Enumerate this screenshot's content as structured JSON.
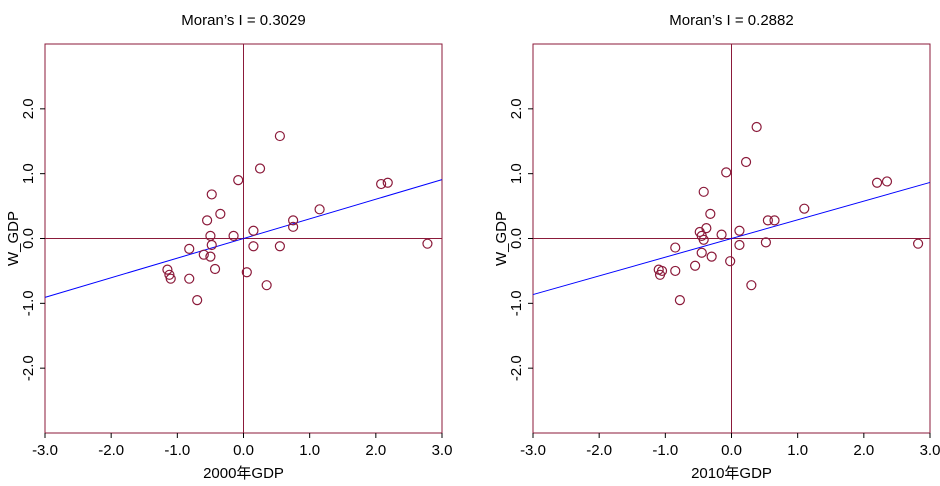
{
  "chart_data": [
    {
      "type": "scatter",
      "title": "Moran’s I = 0.3029",
      "xlabel": "2000年GDP",
      "ylabel": "W_GDP",
      "xlim": [
        -3.0,
        3.0
      ],
      "ylim": [
        -3.0,
        3.0
      ],
      "xticks": [
        "-3.0",
        "-2.0",
        "-1.0",
        "0.0",
        "1.0",
        "2.0",
        "3.0"
      ],
      "yticks": [
        "-2.0",
        "-1.0",
        "0.0",
        "1.0",
        "2.0"
      ],
      "grid": false,
      "point_color": "#8B1A3A",
      "axis_color": "#8B1A3A",
      "fit_line": {
        "slope": 0.3029,
        "color": "#0000FF"
      },
      "points": [
        {
          "x": -1.15,
          "y": -0.48
        },
        {
          "x": -1.12,
          "y": -0.56
        },
        {
          "x": -1.1,
          "y": -0.62
        },
        {
          "x": -0.82,
          "y": -0.62
        },
        {
          "x": -0.82,
          "y": -0.16
        },
        {
          "x": -0.7,
          "y": -0.95
        },
        {
          "x": -0.6,
          "y": -0.25
        },
        {
          "x": -0.55,
          "y": 0.28
        },
        {
          "x": -0.5,
          "y": -0.28
        },
        {
          "x": -0.5,
          "y": 0.04
        },
        {
          "x": -0.48,
          "y": -0.1
        },
        {
          "x": -0.48,
          "y": 0.68
        },
        {
          "x": -0.43,
          "y": -0.47
        },
        {
          "x": -0.35,
          "y": 0.38
        },
        {
          "x": -0.15,
          "y": 0.04
        },
        {
          "x": -0.08,
          "y": 0.9
        },
        {
          "x": 0.05,
          "y": -0.52
        },
        {
          "x": 0.15,
          "y": 0.12
        },
        {
          "x": 0.15,
          "y": -0.12
        },
        {
          "x": 0.25,
          "y": 1.08
        },
        {
          "x": 0.35,
          "y": -0.72
        },
        {
          "x": 0.55,
          "y": -0.12
        },
        {
          "x": 0.55,
          "y": 1.58
        },
        {
          "x": 0.75,
          "y": 0.28
        },
        {
          "x": 0.75,
          "y": 0.18
        },
        {
          "x": 1.15,
          "y": 0.45
        },
        {
          "x": 2.08,
          "y": 0.84
        },
        {
          "x": 2.18,
          "y": 0.86
        },
        {
          "x": 2.78,
          "y": -0.08
        }
      ]
    },
    {
      "type": "scatter",
      "title": "Moran’s I = 0.2882",
      "xlabel": "2010年GDP",
      "ylabel": "W_GDP",
      "xlim": [
        -3.0,
        3.0
      ],
      "ylim": [
        -3.0,
        3.0
      ],
      "xticks": [
        "-3.0",
        "-2.0",
        "-1.0",
        "0.0",
        "1.0",
        "2.0",
        "3.0"
      ],
      "yticks": [
        "-2.0",
        "-1.0",
        "0.0",
        "1.0",
        "2.0"
      ],
      "grid": false,
      "point_color": "#8B1A3A",
      "axis_color": "#8B1A3A",
      "fit_line": {
        "slope": 0.2882,
        "color": "#0000FF"
      },
      "points": [
        {
          "x": -1.1,
          "y": -0.48
        },
        {
          "x": -1.08,
          "y": -0.56
        },
        {
          "x": -1.05,
          "y": -0.5
        },
        {
          "x": -0.85,
          "y": -0.5
        },
        {
          "x": -0.85,
          "y": -0.14
        },
        {
          "x": -0.78,
          "y": -0.95
        },
        {
          "x": -0.55,
          "y": -0.42
        },
        {
          "x": -0.48,
          "y": 0.1
        },
        {
          "x": -0.45,
          "y": -0.22
        },
        {
          "x": -0.45,
          "y": 0.04
        },
        {
          "x": -0.42,
          "y": -0.02
        },
        {
          "x": -0.42,
          "y": 0.72
        },
        {
          "x": -0.38,
          "y": 0.16
        },
        {
          "x": -0.32,
          "y": 0.38
        },
        {
          "x": -0.3,
          "y": -0.28
        },
        {
          "x": -0.15,
          "y": 0.06
        },
        {
          "x": -0.08,
          "y": 1.02
        },
        {
          "x": -0.02,
          "y": -0.35
        },
        {
          "x": 0.12,
          "y": 0.12
        },
        {
          "x": 0.12,
          "y": -0.1
        },
        {
          "x": 0.22,
          "y": 1.18
        },
        {
          "x": 0.3,
          "y": -0.72
        },
        {
          "x": 0.38,
          "y": 1.72
        },
        {
          "x": 0.52,
          "y": -0.06
        },
        {
          "x": 0.55,
          "y": 0.28
        },
        {
          "x": 0.65,
          "y": 0.28
        },
        {
          "x": 1.1,
          "y": 0.46
        },
        {
          "x": 2.2,
          "y": 0.86
        },
        {
          "x": 2.35,
          "y": 0.88
        },
        {
          "x": 2.82,
          "y": -0.08
        }
      ]
    }
  ]
}
